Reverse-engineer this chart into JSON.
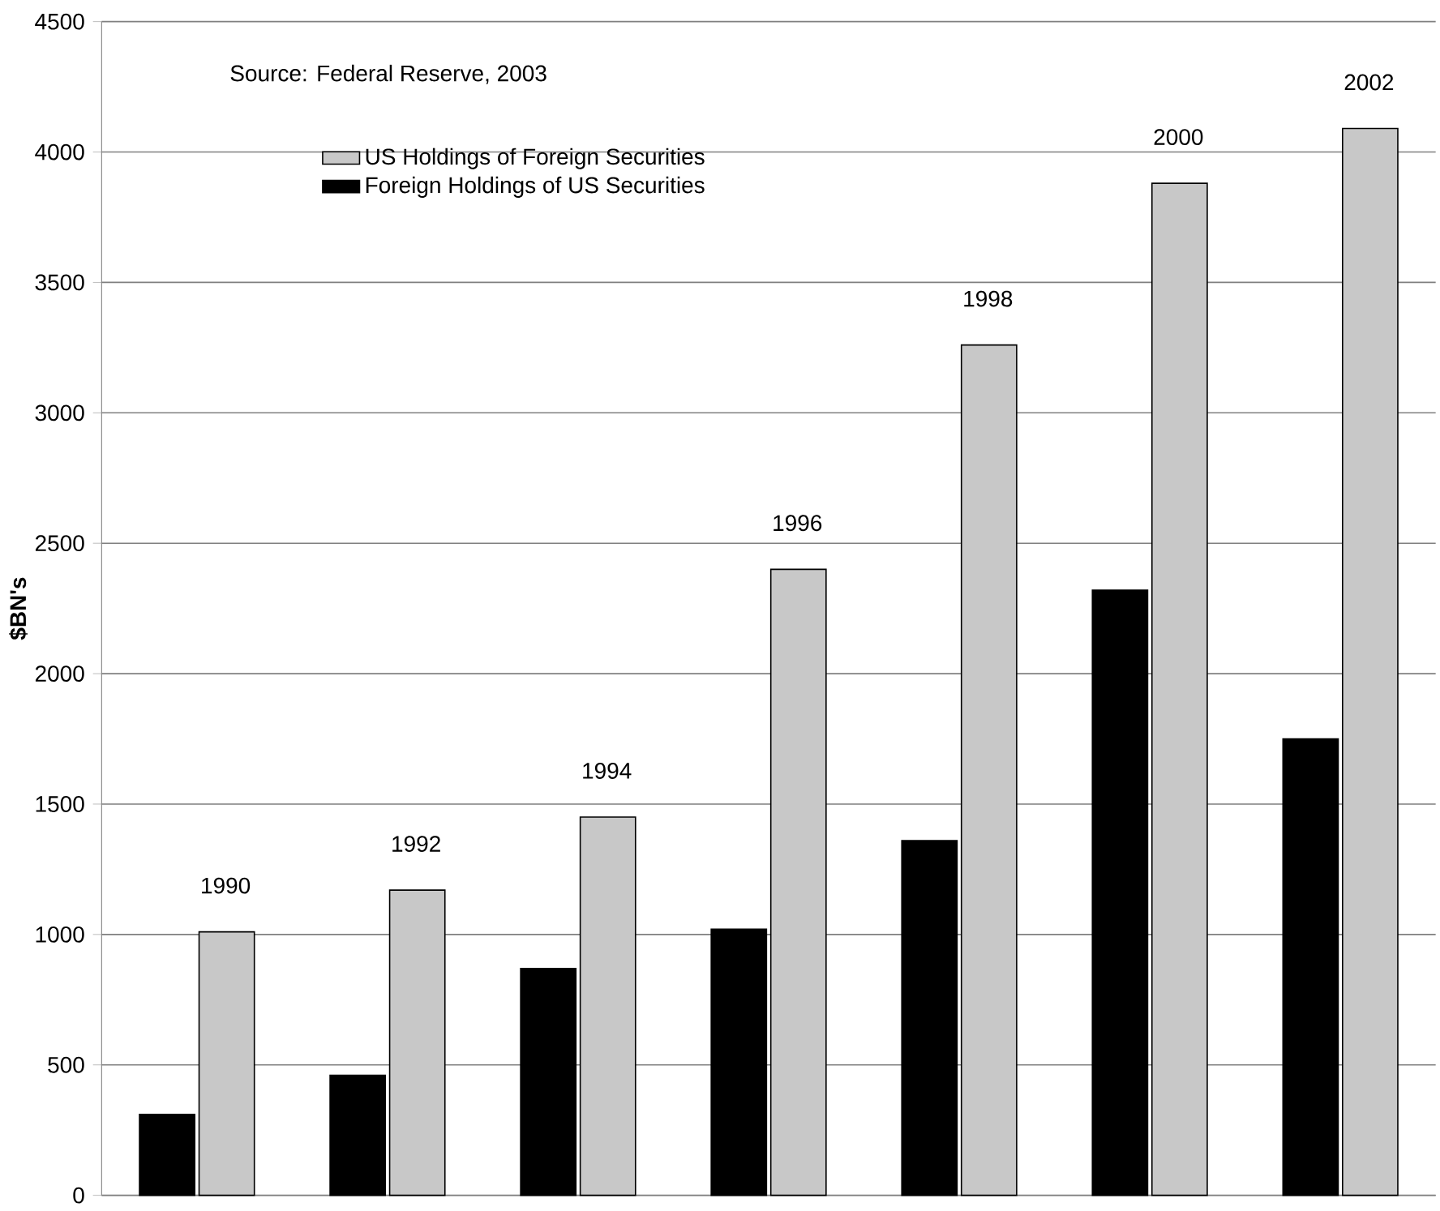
{
  "chart_data": {
    "type": "bar",
    "ylabel": "$BN's",
    "categories": [
      "1990",
      "1992",
      "1994",
      "1996",
      "1998",
      "2000",
      "2002"
    ],
    "series": [
      {
        "name": "US Holdings of Foreign Securities",
        "color": "#c8c8c8",
        "values": [
          1010,
          1170,
          1450,
          2400,
          3260,
          3880,
          4090
        ]
      },
      {
        "name": "Foreign Holdings of US Securities",
        "color": "#000000",
        "values": [
          310,
          460,
          870,
          1020,
          1360,
          2320,
          1750
        ]
      }
    ],
    "ylim": [
      0,
      4500
    ],
    "yticks": [
      0,
      500,
      1000,
      1500,
      2000,
      2500,
      3000,
      3500,
      4000,
      4500
    ],
    "grid": "y",
    "legend": "top left",
    "annotations": [
      "Source: Federal Reserve, 2003"
    ]
  }
}
